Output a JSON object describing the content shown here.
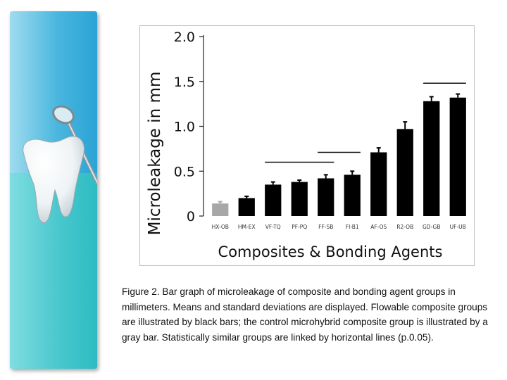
{
  "chart_data": {
    "type": "bar",
    "title": "",
    "xlabel": "Composites & Bonding Agents",
    "ylabel": "Microleakage in mm",
    "ylim": [
      0,
      2.0
    ],
    "yticks": [
      "2.0",
      "1.5",
      "1.0",
      "0.5",
      "0"
    ],
    "categories": [
      "HX-OB",
      "HM-EX",
      "VF-TQ",
      "PF-PQ",
      "FF-SB",
      "FI-B1",
      "AF-OS",
      "R2-OB",
      "GD-GB",
      "UF-UB"
    ],
    "values": [
      0.14,
      0.2,
      0.35,
      0.38,
      0.42,
      0.46,
      0.71,
      0.97,
      1.28,
      1.32
    ],
    "errors": [
      0.02,
      0.02,
      0.03,
      0.02,
      0.04,
      0.04,
      0.05,
      0.08,
      0.05,
      0.04
    ],
    "bar_colors": [
      "#a7a7a7",
      "#000000",
      "#000000",
      "#000000",
      "#000000",
      "#000000",
      "#000000",
      "#000000",
      "#000000",
      "#000000"
    ],
    "similar_groups": [
      {
        "from": "VF-TQ",
        "to": "FF-SB",
        "y": 0.6
      },
      {
        "from": "FF-SB",
        "to": "FI-B1",
        "y": 0.71
      },
      {
        "from": "GD-GB",
        "to": "UF-UB",
        "y": 1.48
      }
    ],
    "grid": false,
    "legend": "none"
  },
  "caption": {
    "text": "Figure 2.   Bar graph of microleakage of composite and bonding agent groups in millimeters. Means and standard deviations are displayed. Flowable composite groups are illustrated by black bars; the control microhybrid composite group is illustrated by a gray bar. Statistically similar groups are linked by horizontal lines (p.0.05)."
  },
  "decor": {
    "panel_art": [
      "tooth-icon",
      "dental-mirror-icon"
    ]
  }
}
